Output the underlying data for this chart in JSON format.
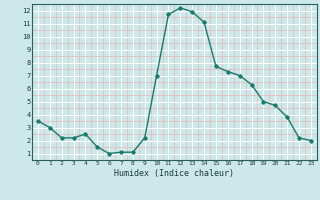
{
  "x": [
    0,
    1,
    2,
    3,
    4,
    5,
    6,
    7,
    8,
    9,
    10,
    11,
    12,
    13,
    14,
    15,
    16,
    17,
    18,
    19,
    20,
    21,
    22,
    23
  ],
  "y": [
    3.5,
    3.0,
    2.2,
    2.2,
    2.5,
    1.5,
    1.0,
    1.1,
    1.1,
    2.2,
    7.0,
    11.7,
    12.2,
    11.9,
    11.1,
    7.7,
    7.3,
    7.0,
    6.3,
    5.0,
    4.7,
    3.8,
    2.2,
    2.0
  ],
  "xlabel": "Humidex (Indice chaleur)",
  "xlim": [
    -0.5,
    23.5
  ],
  "ylim": [
    0.5,
    12.5
  ],
  "yticks": [
    1,
    2,
    3,
    4,
    5,
    6,
    7,
    8,
    9,
    10,
    11,
    12
  ],
  "xticks": [
    0,
    1,
    2,
    3,
    4,
    5,
    6,
    7,
    8,
    9,
    10,
    11,
    12,
    13,
    14,
    15,
    16,
    17,
    18,
    19,
    20,
    21,
    22,
    23
  ],
  "line_color": "#1a7a6e",
  "bg_color": "#cce8e8",
  "grid_major_color": "#ffffff",
  "grid_minor_color": "#e8b8b8",
  "marker": "D",
  "markersize": 1.8,
  "linewidth": 1.0
}
